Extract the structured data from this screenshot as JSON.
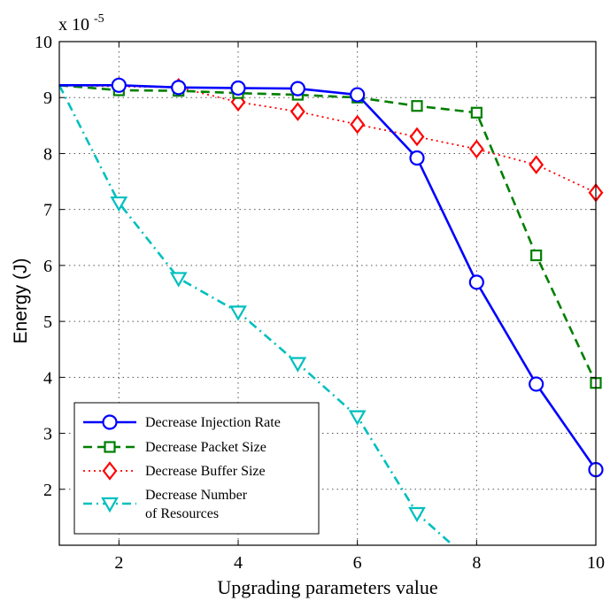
{
  "chart_data": {
    "type": "line",
    "title": "",
    "xlabel": "Upgrading parameters value",
    "ylabel": "Energy (J)",
    "exponent_label": "x 10",
    "exponent_power": "-5",
    "xlim": [
      1,
      10
    ],
    "ylim": [
      1,
      10
    ],
    "xticks": [
      2,
      4,
      6,
      8,
      10
    ],
    "yticks": [
      2,
      3,
      4,
      5,
      6,
      7,
      8,
      9,
      10
    ],
    "grid": true,
    "legend_position": "bottom-left",
    "series": [
      {
        "name": "Decrease Injection Rate",
        "color": "#0000ff",
        "line_style": "solid",
        "marker": "circle",
        "x": [
          1,
          2,
          3,
          4,
          5,
          6,
          7,
          8,
          9,
          10
        ],
        "y": [
          9.22,
          9.22,
          9.18,
          9.17,
          9.16,
          9.05,
          7.92,
          5.7,
          3.88,
          2.35
        ],
        "marker_x": [
          2,
          3,
          4,
          5,
          6,
          7,
          8,
          9,
          10
        ]
      },
      {
        "name": "Decrease Packet Size",
        "color": "#007f00",
        "line_style": "dashed",
        "marker": "square",
        "x": [
          1,
          2,
          3,
          4,
          5,
          6,
          7,
          8,
          9,
          10
        ],
        "y": [
          9.22,
          9.13,
          9.12,
          9.08,
          9.05,
          9.0,
          8.85,
          8.73,
          6.18,
          3.9
        ],
        "marker_x": [
          2,
          3,
          4,
          5,
          6,
          7,
          8,
          9,
          10
        ]
      },
      {
        "name": "Decrease Buffer Size",
        "color": "#ff0000",
        "line_style": "dotted",
        "marker": "diamond",
        "x": [
          1,
          2,
          3,
          4,
          5,
          6,
          7,
          8,
          9,
          10
        ],
        "y": [
          9.22,
          9.2,
          9.18,
          8.92,
          8.75,
          8.52,
          8.3,
          8.08,
          7.8,
          7.3
        ],
        "marker_x": [
          2,
          3,
          4,
          5,
          6,
          7,
          8,
          9,
          10
        ]
      },
      {
        "name": "Decrease Number of Resources",
        "legend_lines": [
          "Decrease Number",
          "of Resources"
        ],
        "color": "#00bfbf",
        "line_style": "dashdot",
        "marker": "triangle-down",
        "x": [
          1,
          2,
          3,
          4,
          5,
          6,
          7,
          7.6
        ],
        "y": [
          9.22,
          7.12,
          5.77,
          5.17,
          4.25,
          3.3,
          1.57,
          1.0
        ],
        "marker_x": [
          2,
          3,
          4,
          5,
          6,
          7
        ]
      }
    ]
  }
}
